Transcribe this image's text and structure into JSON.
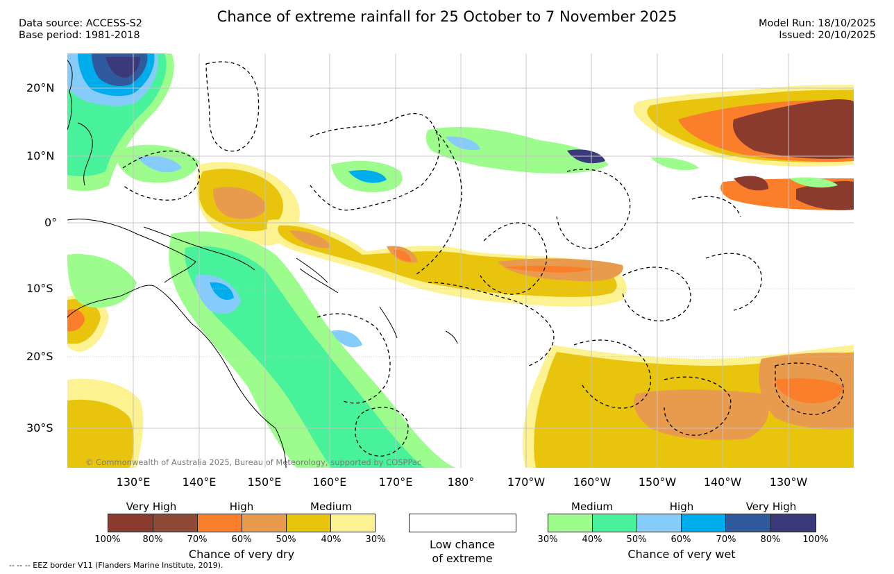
{
  "header": {
    "title": "Chance of extreme rainfall for 25 October to 7 November 2025",
    "data_source": "Data source: ACCESS-S2",
    "base_period": "Base period: 1981-2018",
    "model_run": "Model Run: 18/10/2025",
    "issued": "Issued: 20/10/2025"
  },
  "map": {
    "lat_labels": [
      "20°N",
      "10°N",
      "0°",
      "10°S",
      "20°S",
      "30°S"
    ],
    "lon_labels": [
      "130°E",
      "140°E",
      "150°E",
      "160°E",
      "170°E",
      "180°",
      "170°W",
      "160°W",
      "150°W",
      "140°W",
      "130°W"
    ],
    "copyright": "© Commonwealth of Australia 2025, Bureau of Meteorology, supported by COSPPac",
    "layers": [
      "land-coastline",
      "eez-borders",
      "dry-probability-shading",
      "wet-probability-shading"
    ]
  },
  "legend": {
    "dry": {
      "categories": [
        "Very High",
        "High",
        "Medium"
      ],
      "colors": [
        "#8b3a2e",
        "#8e4a35",
        "#fb7e2a",
        "#e99b4d",
        "#e8c50c",
        "#fcf291"
      ],
      "ticks": [
        "100%",
        "80%",
        "70%",
        "60%",
        "50%",
        "40%",
        "30%"
      ],
      "title": "Chance of very dry"
    },
    "low": {
      "label_line1": "Low chance",
      "label_line2": "of extreme",
      "color": "#ffffff"
    },
    "wet": {
      "categories": [
        "Medium",
        "High",
        "Very High"
      ],
      "colors": [
        "#9cfc8c",
        "#48f29a",
        "#86ccfb",
        "#00adec",
        "#315a9e",
        "#3a3a7b"
      ],
      "ticks": [
        "30%",
        "40%",
        "50%",
        "60%",
        "70%",
        "80%",
        "100%"
      ],
      "title": "Chance of very wet"
    }
  },
  "footnote": "-- -- -- EEZ border V11 (Flanders Marine Institute, 2019)."
}
